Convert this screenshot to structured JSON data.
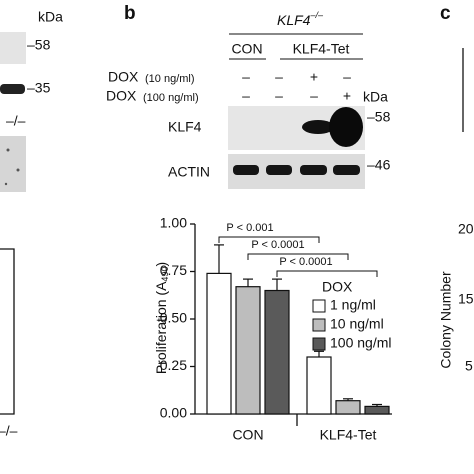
{
  "panel_a": {
    "kda": "kDa",
    "marker_58": "–58",
    "marker_35": "–35",
    "genotype": "–/–",
    "bottom_label": "–/–"
  },
  "panel_b": {
    "label": "b",
    "genotype_parts": [
      "KLF4",
      "–/–"
    ],
    "columns": [
      "CON",
      "KLF4-Tet"
    ],
    "dox_rows": [
      {
        "label_parts": [
          "DOX",
          "(10 ng/ml)"
        ],
        "signs": [
          "–",
          "–",
          "+",
          "–"
        ]
      },
      {
        "label_parts": [
          "DOX",
          "(100 ng/ml)"
        ],
        "signs": [
          "–",
          "–",
          "–",
          "+"
        ]
      }
    ],
    "kda": "kDa",
    "blots": [
      {
        "name": "KLF4",
        "marker": "–58"
      },
      {
        "name": "ACTIN",
        "marker": "–46"
      }
    ]
  },
  "panel_c": {
    "label": "c",
    "ytick_labels": [
      "20",
      "15",
      "5"
    ],
    "ylabel": "Colony Number"
  },
  "chart_data": {
    "type": "bar",
    "ylabel_parts": [
      "Proliferation (A",
      "490",
      ")"
    ],
    "categories": [
      "CON",
      "KLF4-Tet"
    ],
    "legend_title": "DOX",
    "series": [
      {
        "name": "1 ng/ml",
        "color": "#ffffff",
        "values": [
          0.74,
          0.3
        ],
        "errors": [
          0.15,
          0.03
        ]
      },
      {
        "name": "10 ng/ml",
        "color": "#bdbdbd",
        "values": [
          0.67,
          0.07
        ],
        "errors": [
          0.04,
          0.01
        ]
      },
      {
        "name": "100 ng/ml",
        "color": "#5a5a5a",
        "values": [
          0.65,
          0.04
        ],
        "errors": [
          0.06,
          0.01
        ]
      }
    ],
    "ylim": [
      0,
      1
    ],
    "yticks": [
      {
        "value": 0,
        "label": "0.00"
      },
      {
        "value": 0.25,
        "label": "0.25"
      },
      {
        "value": 0.5,
        "label": "0.50"
      },
      {
        "value": 0.75,
        "label": "0.75"
      },
      {
        "value": 1,
        "label": "1.00"
      }
    ],
    "annotations": [
      "P < 0.001",
      "P < 0.0001",
      "P < 0.0001"
    ]
  }
}
